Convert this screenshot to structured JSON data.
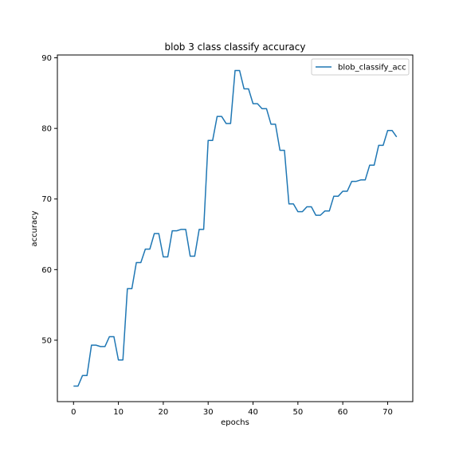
{
  "chart_data": {
    "type": "line",
    "title": "blob 3 class classify accuracy",
    "xlabel": "epochs",
    "ylabel": "accuracy",
    "xlim": [
      -3.6,
      75.6
    ],
    "ylim": [
      41.3,
      90.4
    ],
    "xticks": [
      0,
      10,
      20,
      30,
      40,
      50,
      60,
      70
    ],
    "yticks": [
      50,
      60,
      70,
      80,
      90
    ],
    "grid": false,
    "legend_position": "top-right",
    "series": [
      {
        "name": "blob_classify_acc",
        "color": "#1f77b4",
        "x": [
          0,
          1,
          2,
          3,
          4,
          5,
          6,
          7,
          8,
          9,
          10,
          11,
          12,
          13,
          14,
          15,
          16,
          17,
          18,
          19,
          20,
          21,
          22,
          23,
          24,
          25,
          26,
          27,
          28,
          29,
          30,
          31,
          32,
          33,
          34,
          35,
          36,
          37,
          38,
          39,
          40,
          41,
          42,
          43,
          44,
          45,
          46,
          47,
          48,
          49,
          50,
          51,
          52,
          53,
          54,
          55,
          56,
          57,
          58,
          59,
          60,
          61,
          62,
          63,
          64,
          65,
          66,
          67,
          68,
          69,
          70,
          71,
          72
        ],
        "y": [
          43.5,
          43.5,
          45.0,
          45.0,
          49.3,
          49.3,
          49.1,
          49.1,
          50.5,
          50.5,
          47.2,
          47.2,
          57.3,
          57.3,
          61.0,
          61.0,
          62.9,
          62.9,
          65.1,
          65.1,
          61.8,
          61.8,
          65.5,
          65.5,
          65.7,
          65.7,
          61.9,
          61.9,
          65.7,
          65.7,
          78.3,
          78.3,
          81.7,
          81.7,
          80.7,
          80.7,
          88.2,
          88.2,
          85.6,
          85.6,
          83.5,
          83.5,
          82.8,
          82.8,
          80.6,
          80.6,
          76.9,
          76.9,
          69.3,
          69.3,
          68.2,
          68.2,
          68.9,
          68.9,
          67.7,
          67.7,
          68.3,
          68.3,
          70.4,
          70.4,
          71.1,
          71.1,
          72.5,
          72.5,
          72.7,
          72.7,
          74.8,
          74.8,
          77.6,
          77.6,
          79.7,
          79.7,
          78.8
        ]
      }
    ]
  }
}
